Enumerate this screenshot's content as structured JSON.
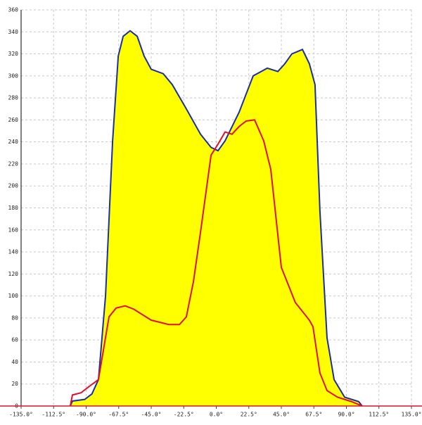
{
  "chart_data": {
    "type": "area",
    "xlim": [
      -135,
      135
    ],
    "ylim": [
      0,
      360
    ],
    "xticks": [
      {
        "value": -135,
        "label": "-135.0°"
      },
      {
        "value": -112.5,
        "label": "-112.5°"
      },
      {
        "value": -90,
        "label": "-90.0°"
      },
      {
        "value": -67.5,
        "label": "-67.5°"
      },
      {
        "value": -45,
        "label": "-45.0°"
      },
      {
        "value": -22.5,
        "label": "-22.5°"
      },
      {
        "value": 0,
        "label": "0.0°"
      },
      {
        "value": 22.5,
        "label": "22.5°"
      },
      {
        "value": 45,
        "label": "45.0°"
      },
      {
        "value": 67.5,
        "label": "67.5°"
      },
      {
        "value": 90,
        "label": "90.0°"
      },
      {
        "value": 112.5,
        "label": "112.5°"
      },
      {
        "value": 135,
        "label": "135.0°"
      }
    ],
    "yticks": [
      0,
      20,
      40,
      60,
      80,
      100,
      120,
      140,
      160,
      180,
      200,
      220,
      240,
      260,
      280,
      300,
      320,
      340,
      360
    ],
    "grid": true,
    "series": [
      {
        "color": "#1a2ea8",
        "fill": "#ffff00",
        "x": [
          -101,
          -99.5,
          -91,
          -86,
          -81.5,
          -76.6,
          -71.7,
          -67.8,
          -64.4,
          -59.6,
          -54.7,
          -49.9,
          -45,
          -36.7,
          -30.4,
          -20.7,
          -10.9,
          -3.6,
          1.2,
          6.1,
          15.8,
          25.5,
          35.3,
          42.6,
          47.4,
          52.3,
          59.6,
          64.4,
          68.3,
          71.7,
          76.6,
          81.5,
          88.8,
          98.5,
          100.9
        ],
        "values": [
          0,
          4.5,
          6,
          11,
          24,
          100,
          241,
          318,
          336,
          341,
          336,
          318,
          306,
          302,
          292,
          270,
          247,
          235,
          232,
          241,
          267,
          300,
          307,
          304,
          311,
          320,
          324,
          311,
          292,
          177,
          62,
          24,
          8,
          4,
          0
        ]
      },
      {
        "color": "#e0102a",
        "fill": "none",
        "x": [
          -101,
          -99.5,
          -93.6,
          -88.7,
          -81.5,
          -74.2,
          -69.3,
          -63,
          -57.1,
          -45,
          -32.8,
          -25.5,
          -20.7,
          -15.8,
          -10.9,
          -3.6,
          1.2,
          6.1,
          10.9,
          15.8,
          20.7,
          26.5,
          32.8,
          37.7,
          45,
          54.7,
          64.4,
          66.9,
          71.7,
          76.6,
          83.9,
          93.6,
          100.9
        ],
        "values": [
          0,
          10,
          12,
          17,
          24,
          81,
          89,
          91,
          88,
          78,
          74,
          74,
          81,
          113,
          158,
          228,
          238,
          249,
          247,
          254,
          259,
          260,
          241,
          215,
          126,
          94,
          78,
          72,
          30,
          14,
          8,
          4,
          0
        ]
      }
    ]
  }
}
